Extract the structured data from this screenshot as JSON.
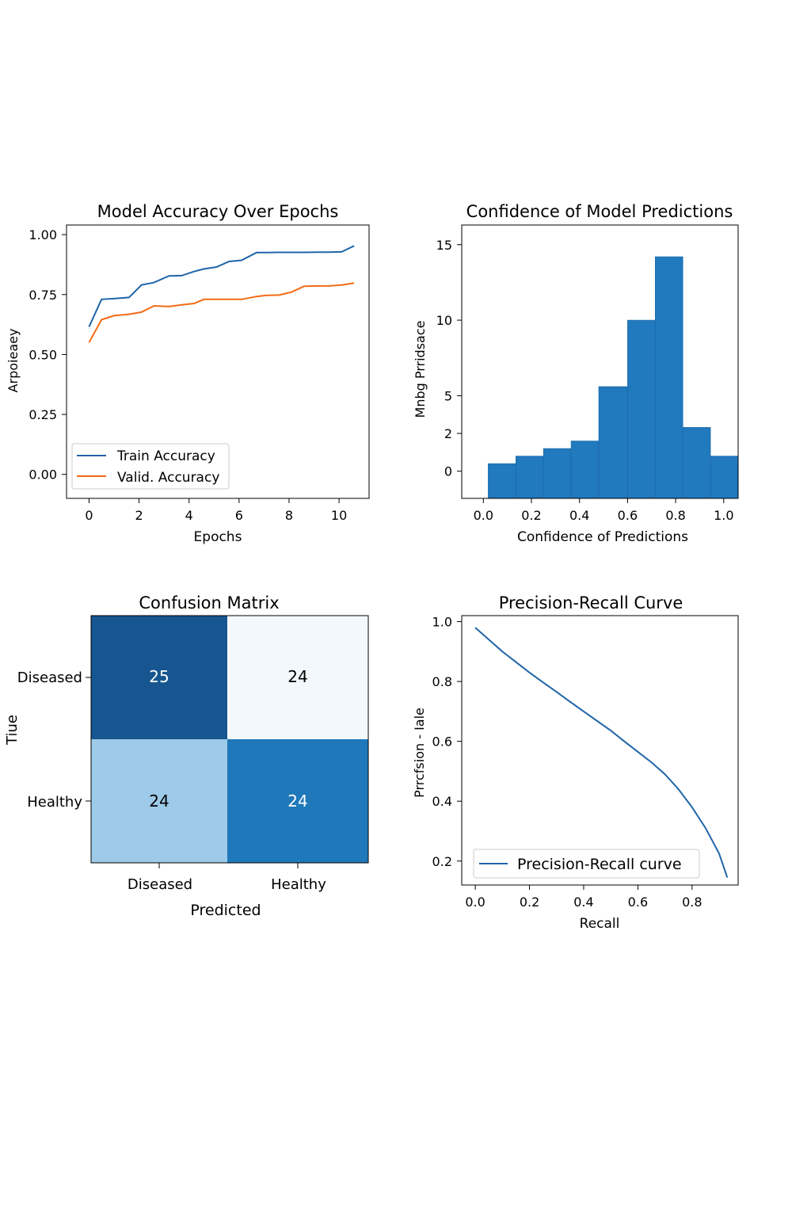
{
  "chart_data": [
    {
      "type": "line",
      "title": "Model Accuracy Over Epochs",
      "xlabel": "Epochs",
      "ylabel": "Arpoieaey",
      "xlim": [
        -0.9,
        11.2
      ],
      "ylim": [
        -0.1,
        1.04
      ],
      "xticks": [
        "0",
        "2",
        "4",
        "6",
        "8",
        "10"
      ],
      "yticks": [
        "0.00",
        "0.25",
        "0.50",
        "0.75",
        "1.00"
      ],
      "legend_position": "lower-left",
      "series": [
        {
          "name": "Train Accuracy",
          "color": "#1f65a8",
          "x": [
            0,
            0.5,
            1.0,
            1.6,
            2.1,
            2.6,
            3.2,
            3.7,
            4.2,
            4.6,
            5.1,
            5.6,
            6.1,
            6.7,
            7.1,
            7.6,
            8.1,
            8.6,
            9.2,
            9.6,
            10.1,
            10.6
          ],
          "y": [
            0.615,
            0.73,
            0.733,
            0.738,
            0.79,
            0.8,
            0.828,
            0.829,
            0.846,
            0.857,
            0.865,
            0.888,
            0.893,
            0.925,
            0.925,
            0.926,
            0.926,
            0.926,
            0.927,
            0.927,
            0.928,
            0.953
          ]
        },
        {
          "name": "Valid. Accuracy",
          "color": "#f26b15",
          "x": [
            0,
            0.5,
            1.0,
            1.6,
            2.1,
            2.6,
            3.2,
            3.7,
            4.2,
            4.6,
            5.1,
            5.6,
            6.1,
            6.7,
            7.1,
            7.6,
            8.1,
            8.6,
            9.2,
            9.6,
            10.1,
            10.6
          ],
          "y": [
            0.55,
            0.645,
            0.662,
            0.668,
            0.677,
            0.703,
            0.7,
            0.707,
            0.713,
            0.73,
            0.73,
            0.73,
            0.73,
            0.742,
            0.747,
            0.748,
            0.76,
            0.785,
            0.786,
            0.786,
            0.79,
            0.798
          ]
        }
      ]
    },
    {
      "type": "bar",
      "title": "Confidence of Model Predictions",
      "xlabel": "Confidence of Predictions",
      "ylabel": "Mnbg Prridsace",
      "xlim": [
        -0.09,
        1.06
      ],
      "ylim": [
        -1.8,
        16.3
      ],
      "xticks": [
        "0.0",
        "0.2",
        "0.4",
        "0.6",
        "0.8",
        "1.0"
      ],
      "yticks": [
        "0",
        "2",
        "5",
        "10",
        "15"
      ],
      "bar_color": "#2179be",
      "bins": [
        {
          "x0": 0.02,
          "x1": 0.135,
          "value": 0.5
        },
        {
          "x0": 0.135,
          "x1": 0.25,
          "value": 1.0
        },
        {
          "x0": 0.25,
          "x1": 0.365,
          "value": 1.5
        },
        {
          "x0": 0.365,
          "x1": 0.48,
          "value": 2.0
        },
        {
          "x0": 0.48,
          "x1": 0.6,
          "value": 5.6
        },
        {
          "x0": 0.6,
          "x1": 0.715,
          "value": 10.0
        },
        {
          "x0": 0.715,
          "x1": 0.83,
          "value": 14.2
        },
        {
          "x0": 0.83,
          "x1": 0.945,
          "value": 2.9
        },
        {
          "x0": 0.945,
          "x1": 1.06,
          "value": 1.0
        }
      ]
    },
    {
      "type": "heatmap",
      "title": "Confusion Matrix",
      "xlabel": "Predicted",
      "ylabel": "Tiue",
      "x_categories": [
        "Diseased",
        "Healthy"
      ],
      "y_categories": [
        "Diseased",
        "Healthy"
      ],
      "values": [
        [
          25,
          24
        ],
        [
          24,
          24
        ]
      ],
      "cell_colors": [
        [
          "#175690",
          "#f3f8fd"
        ],
        [
          "#9ecae9",
          "#1f78b9"
        ]
      ],
      "text_colors": [
        [
          "#ffffff",
          "#000000"
        ],
        [
          "#000000",
          "#ffffff"
        ]
      ]
    },
    {
      "type": "line",
      "title": "Precision-Recall Curve",
      "xlabel": "Recall",
      "ylabel": "Prrcfsion - Iale",
      "xlim": [
        -0.05,
        0.97
      ],
      "ylim": [
        0.12,
        1.02
      ],
      "xticks": [
        "0.0",
        "0.2",
        "0.4",
        "0.6",
        "0.8"
      ],
      "yticks": [
        "0.2",
        "0.4",
        "0.6",
        "0.8",
        "1.0"
      ],
      "legend_position": "lower-center",
      "series": [
        {
          "name": "Precision-Recall curve",
          "color": "#1f65a8",
          "x": [
            0.0,
            0.05,
            0.1,
            0.15,
            0.2,
            0.25,
            0.3,
            0.35,
            0.4,
            0.45,
            0.5,
            0.55,
            0.6,
            0.65,
            0.7,
            0.75,
            0.8,
            0.85,
            0.9,
            0.93
          ],
          "y": [
            0.98,
            0.94,
            0.9,
            0.865,
            0.83,
            0.797,
            0.765,
            0.732,
            0.7,
            0.668,
            0.636,
            0.6,
            0.565,
            0.53,
            0.49,
            0.44,
            0.38,
            0.31,
            0.225,
            0.145
          ]
        }
      ]
    }
  ]
}
